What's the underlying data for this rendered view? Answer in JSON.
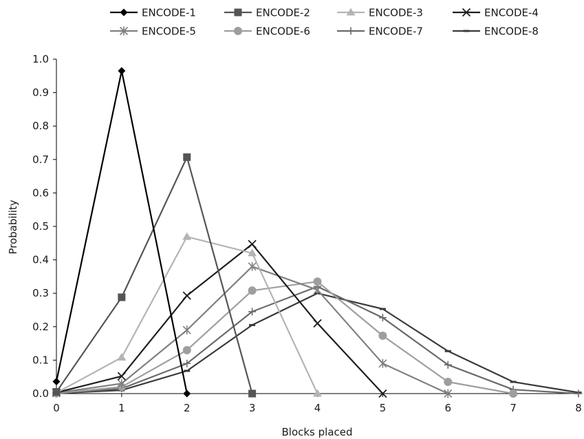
{
  "chart_data": {
    "type": "line",
    "xlabel": "Blocks placed",
    "ylabel": "Probability",
    "xlim": [
      0,
      8
    ],
    "ylim": [
      0,
      1.0
    ],
    "x": [
      0,
      1,
      2,
      3,
      4,
      5,
      6,
      7,
      8
    ],
    "x_ticks": [
      "0",
      "1",
      "2",
      "3",
      "4",
      "5",
      "6",
      "7",
      "8"
    ],
    "y_ticks": [
      "0.0",
      "0.1",
      "0.2",
      "0.3",
      "0.4",
      "0.5",
      "0.6",
      "0.7",
      "0.8",
      "0.9",
      "1.0"
    ],
    "grid": false,
    "legend_position": "top",
    "series": [
      {
        "name": "ENCODE-1",
        "marker": "diamond",
        "color": "#000000",
        "values": [
          0.036,
          0.965,
          0.0,
          null,
          null,
          null,
          null,
          null,
          null
        ]
      },
      {
        "name": "ENCODE-2",
        "marker": "square",
        "color": "#555555",
        "values": [
          0.005,
          0.288,
          0.707,
          0.0,
          null,
          null,
          null,
          null,
          null
        ]
      },
      {
        "name": "ENCODE-3",
        "marker": "triangle",
        "color": "#b4b4b4",
        "values": [
          0.002,
          0.108,
          0.469,
          0.42,
          0.0,
          null,
          null,
          null,
          null
        ]
      },
      {
        "name": "ENCODE-4",
        "marker": "x",
        "color": "#1e1e1e",
        "values": [
          0.003,
          0.052,
          0.293,
          0.447,
          0.21,
          0.0,
          null,
          null,
          null
        ]
      },
      {
        "name": "ENCODE-5",
        "marker": "star",
        "color": "#808080",
        "values": [
          0.002,
          0.03,
          0.19,
          0.38,
          0.31,
          0.09,
          0.0,
          null,
          null
        ]
      },
      {
        "name": "ENCODE-6",
        "marker": "circle",
        "color": "#9e9e9e",
        "values": [
          0.001,
          0.02,
          0.13,
          0.308,
          0.335,
          0.173,
          0.035,
          0.0,
          null
        ]
      },
      {
        "name": "ENCODE-7",
        "marker": "plus",
        "color": "#6a6a6a",
        "values": [
          0.001,
          0.015,
          0.09,
          0.245,
          0.32,
          0.227,
          0.086,
          0.012,
          0.0
        ]
      },
      {
        "name": "ENCODE-8",
        "marker": "dash",
        "color": "#3a3a3a",
        "values": [
          0.001,
          0.01,
          0.068,
          0.205,
          0.3,
          0.253,
          0.127,
          0.035,
          0.003
        ]
      }
    ]
  }
}
